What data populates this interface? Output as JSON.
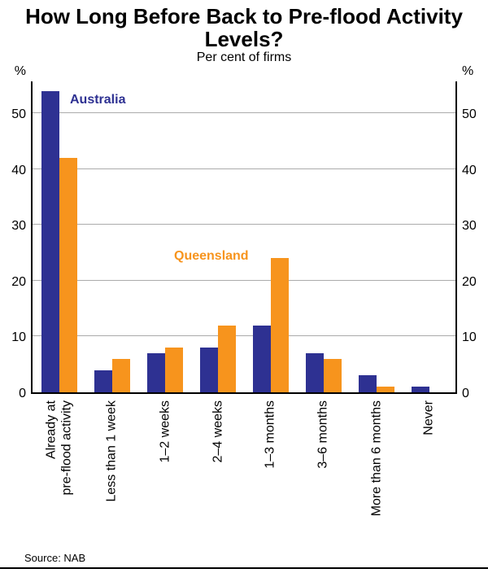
{
  "chart_data": {
    "type": "bar",
    "title": "How Long Before Back to Pre-flood Activity Levels?",
    "subtitle": "Per cent of firms",
    "unit_label": "%",
    "categories": [
      "Already at\npre-flood activity",
      "Less than 1 week",
      "1–2 weeks",
      "2–4 weeks",
      "1–3 months",
      "3–6 months",
      "More than 6 months",
      "Never"
    ],
    "series": [
      {
        "name": "Australia",
        "color": "#2E3192",
        "values": [
          54,
          4,
          7,
          8,
          12,
          7,
          3,
          1
        ]
      },
      {
        "name": "Queensland",
        "color": "#F7941D",
        "values": [
          42,
          6,
          8,
          12,
          24,
          6,
          1,
          0
        ]
      }
    ],
    "ylim": [
      0,
      56
    ],
    "yticks": [
      0,
      10,
      20,
      30,
      40,
      50
    ],
    "grid": true,
    "legend": "inline-annotations",
    "source": "Source: NAB",
    "annotations": [
      {
        "text": "Australia",
        "color": "#2E3192",
        "x": 46,
        "y": 13
      },
      {
        "text": "Queensland",
        "color": "#F7941D",
        "x": 174,
        "y": 205
      }
    ]
  }
}
